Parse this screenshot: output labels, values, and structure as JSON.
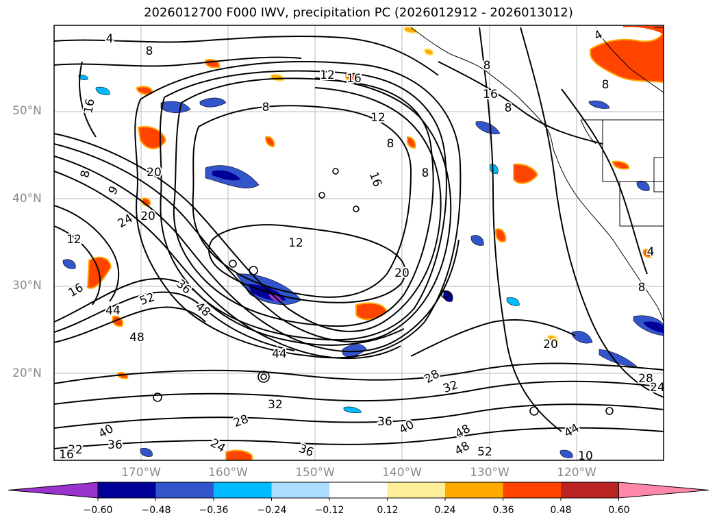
{
  "title": "2026012700 F000 IWV, precipitation PC (2026012912 - 2026013012)",
  "lat_ticks": [
    "50°N",
    "40°N",
    "30°N",
    "20°N"
  ],
  "lon_ticks": [
    "170°W",
    "160°W",
    "150°W",
    "140°W",
    "130°W",
    "120°W"
  ],
  "colorbar": {
    "tick_labels": [
      "−0.60",
      "−0.48",
      "−0.36",
      "−0.24",
      "−0.12",
      "0.12",
      "0.24",
      "0.36",
      "0.48",
      "0.60"
    ],
    "colors": [
      "#9933cc",
      "#000099",
      "#3355cc",
      "#00bbff",
      "#aaddff",
      "#ffffff",
      "#ffee99",
      "#ffaa00",
      "#ff4400",
      "#bb2222",
      "#ff88aa"
    ]
  },
  "contour_labels": [
    "4",
    "8",
    "12",
    "16",
    "16",
    "8",
    "12",
    "16",
    "8",
    "16",
    "8",
    "8",
    "20",
    "9",
    "12",
    "24",
    "20",
    "16",
    "12",
    "20",
    "44",
    "52",
    "36",
    "48",
    "48",
    "44",
    "20",
    "28",
    "32",
    "32",
    "28",
    "36",
    "40",
    "48",
    "48",
    "52",
    "44",
    "36",
    "40",
    "36",
    "32",
    "24",
    "16",
    "4",
    "8",
    "28",
    "24",
    "8",
    "8",
    "4",
    "10",
    "8"
  ],
  "colors": {
    "frame": "#000000",
    "grid": "#b0b0b0",
    "axis_text": "#8a8a8a"
  }
}
